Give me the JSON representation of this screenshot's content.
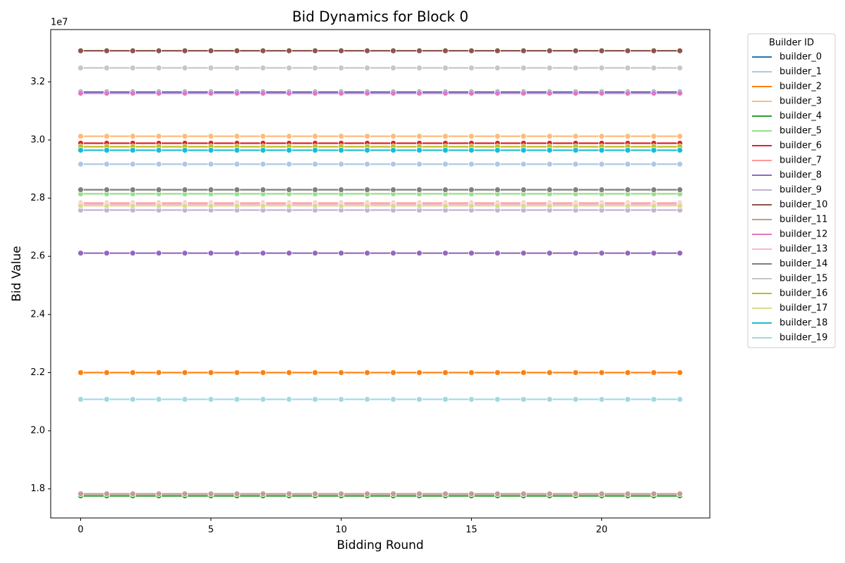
{
  "chart_data": {
    "type": "line",
    "title": "Bid Dynamics for Block 0",
    "x_label": "Bidding Round",
    "y_label": "Bid Value",
    "y_offset": "1e7",
    "legend_title": "Builder ID",
    "legend": "outside-upper-right",
    "grid": false,
    "x": [
      0,
      1,
      2,
      3,
      4,
      5,
      6,
      7,
      8,
      9,
      10,
      11,
      12,
      13,
      14,
      15,
      16,
      17,
      18,
      19,
      20,
      21,
      22,
      23
    ],
    "xlim": [
      -1.15,
      24.15
    ],
    "xticks": [
      0,
      5,
      10,
      15,
      20
    ],
    "ylim": [
      1.7,
      3.38
    ],
    "yticks": [
      1.8,
      {
        "value": 2.0,
        "label": "2.0"
      },
      2.2,
      2.4,
      2.6,
      2.8,
      {
        "value": 3.0,
        "label": "3.0"
      },
      3.2
    ],
    "series": [
      {
        "name": "builder_0",
        "color": "#1f77b4",
        "values": [
          3.165,
          3.165,
          3.165,
          3.165,
          3.165,
          3.165,
          3.165,
          3.165,
          3.165,
          3.165,
          3.165,
          3.165,
          3.165,
          3.165,
          3.165,
          3.165,
          3.165,
          3.165,
          3.165,
          3.165,
          3.165,
          3.165,
          3.165,
          3.165
        ]
      },
      {
        "name": "builder_1",
        "color": "#aec7e8",
        "values": [
          2.917,
          2.917,
          2.917,
          2.917,
          2.917,
          2.917,
          2.917,
          2.917,
          2.917,
          2.917,
          2.917,
          2.917,
          2.917,
          2.917,
          2.917,
          2.917,
          2.917,
          2.917,
          2.917,
          2.917,
          2.917,
          2.917,
          2.917,
          2.917
        ]
      },
      {
        "name": "builder_2",
        "color": "#ff7f0e",
        "values": [
          2.2,
          2.2,
          2.2,
          2.2,
          2.2,
          2.2,
          2.2,
          2.2,
          2.2,
          2.2,
          2.2,
          2.2,
          2.2,
          2.2,
          2.2,
          2.2,
          2.2,
          2.2,
          2.2,
          2.2,
          2.2,
          2.2,
          2.2,
          2.2
        ]
      },
      {
        "name": "builder_3",
        "color": "#ffbb78",
        "values": [
          3.013,
          3.013,
          3.013,
          3.013,
          3.013,
          3.013,
          3.013,
          3.013,
          3.013,
          3.013,
          3.013,
          3.013,
          3.013,
          3.013,
          3.013,
          3.013,
          3.013,
          3.013,
          3.013,
          3.013,
          3.013,
          3.013,
          3.013,
          3.013
        ]
      },
      {
        "name": "builder_4",
        "color": "#2ca02c",
        "values": [
          1.776,
          1.776,
          1.776,
          1.776,
          1.776,
          1.776,
          1.776,
          1.776,
          1.776,
          1.776,
          1.776,
          1.776,
          1.776,
          1.776,
          1.776,
          1.776,
          1.776,
          1.776,
          1.776,
          1.776,
          1.776,
          1.776,
          1.776,
          1.776
        ]
      },
      {
        "name": "builder_5",
        "color": "#98df8a",
        "values": [
          2.815,
          2.815,
          2.815,
          2.815,
          2.815,
          2.815,
          2.815,
          2.815,
          2.815,
          2.815,
          2.815,
          2.815,
          2.815,
          2.815,
          2.815,
          2.815,
          2.815,
          2.815,
          2.815,
          2.815,
          2.815,
          2.815,
          2.815,
          2.815
        ]
      },
      {
        "name": "builder_6",
        "color": "#d62728",
        "values": [
          2.989,
          2.989,
          2.989,
          2.989,
          2.989,
          2.989,
          2.989,
          2.989,
          2.989,
          2.989,
          2.989,
          2.989,
          2.989,
          2.989,
          2.989,
          2.989,
          2.989,
          2.989,
          2.989,
          2.989,
          2.989,
          2.989,
          2.989,
          2.989
        ]
      },
      {
        "name": "builder_7",
        "color": "#ff9896",
        "values": [
          2.783,
          2.783,
          2.783,
          2.783,
          2.783,
          2.783,
          2.783,
          2.783,
          2.783,
          2.783,
          2.783,
          2.783,
          2.783,
          2.783,
          2.783,
          2.783,
          2.783,
          2.783,
          2.783,
          2.783,
          2.783,
          2.783,
          2.783,
          2.783
        ]
      },
      {
        "name": "builder_8",
        "color": "#9467bd",
        "values": [
          2.611,
          2.611,
          2.611,
          2.611,
          2.611,
          2.611,
          2.611,
          2.611,
          2.611,
          2.611,
          2.611,
          2.611,
          2.611,
          2.611,
          2.611,
          2.611,
          2.611,
          2.611,
          2.611,
          2.611,
          2.611,
          2.611,
          2.611,
          2.611
        ]
      },
      {
        "name": "builder_9",
        "color": "#c5b0d5",
        "values": [
          2.759,
          2.759,
          2.759,
          2.759,
          2.759,
          2.759,
          2.759,
          2.759,
          2.759,
          2.759,
          2.759,
          2.759,
          2.759,
          2.759,
          2.759,
          2.759,
          2.759,
          2.759,
          2.759,
          2.759,
          2.759,
          2.759,
          2.759,
          2.759
        ]
      },
      {
        "name": "builder_10",
        "color": "#8c564b",
        "values": [
          3.307,
          3.307,
          3.307,
          3.307,
          3.307,
          3.307,
          3.307,
          3.307,
          3.307,
          3.307,
          3.307,
          3.307,
          3.307,
          3.307,
          3.307,
          3.307,
          3.307,
          3.307,
          3.307,
          3.307,
          3.307,
          3.307,
          3.307,
          3.307
        ]
      },
      {
        "name": "builder_11",
        "color": "#c49c94",
        "values": [
          1.783,
          1.783,
          1.783,
          1.783,
          1.783,
          1.783,
          1.783,
          1.783,
          1.783,
          1.783,
          1.783,
          1.783,
          1.783,
          1.783,
          1.783,
          1.783,
          1.783,
          1.783,
          1.783,
          1.783,
          1.783,
          1.783,
          1.783,
          1.783
        ]
      },
      {
        "name": "builder_12",
        "color": "#e377c2",
        "values": [
          3.161,
          3.161,
          3.161,
          3.161,
          3.161,
          3.161,
          3.161,
          3.161,
          3.161,
          3.161,
          3.161,
          3.161,
          3.161,
          3.161,
          3.161,
          3.161,
          3.161,
          3.161,
          3.161,
          3.161,
          3.161,
          3.161,
          3.161,
          3.161
        ]
      },
      {
        "name": "builder_13",
        "color": "#f7b6d2",
        "values": [
          2.779,
          2.779,
          2.779,
          2.779,
          2.779,
          2.779,
          2.779,
          2.779,
          2.779,
          2.779,
          2.779,
          2.779,
          2.779,
          2.779,
          2.779,
          2.779,
          2.779,
          2.779,
          2.779,
          2.779,
          2.779,
          2.779,
          2.779,
          2.779
        ]
      },
      {
        "name": "builder_14",
        "color": "#7f7f7f",
        "values": [
          2.829,
          2.829,
          2.829,
          2.829,
          2.829,
          2.829,
          2.829,
          2.829,
          2.829,
          2.829,
          2.829,
          2.829,
          2.829,
          2.829,
          2.829,
          2.829,
          2.829,
          2.829,
          2.829,
          2.829,
          2.829,
          2.829,
          2.829,
          2.829
        ]
      },
      {
        "name": "builder_15",
        "color": "#c7c7c7",
        "values": [
          3.248,
          3.248,
          3.248,
          3.248,
          3.248,
          3.248,
          3.248,
          3.248,
          3.248,
          3.248,
          3.248,
          3.248,
          3.248,
          3.248,
          3.248,
          3.248,
          3.248,
          3.248,
          3.248,
          3.248,
          3.248,
          3.248,
          3.248,
          3.248
        ]
      },
      {
        "name": "builder_16",
        "color": "#bcbd22",
        "values": [
          2.977,
          2.977,
          2.977,
          2.977,
          2.977,
          2.977,
          2.977,
          2.977,
          2.977,
          2.977,
          2.977,
          2.977,
          2.977,
          2.977,
          2.977,
          2.977,
          2.977,
          2.977,
          2.977,
          2.977,
          2.977,
          2.977,
          2.977,
          2.977
        ]
      },
      {
        "name": "builder_17",
        "color": "#dbdb8d",
        "values": [
          2.774,
          2.774,
          2.774,
          2.774,
          2.774,
          2.774,
          2.774,
          2.774,
          2.774,
          2.774,
          2.774,
          2.774,
          2.774,
          2.774,
          2.774,
          2.774,
          2.774,
          2.774,
          2.774,
          2.774,
          2.774,
          2.774,
          2.774,
          2.774
        ]
      },
      {
        "name": "builder_18",
        "color": "#17becf",
        "values": [
          2.965,
          2.965,
          2.965,
          2.965,
          2.965,
          2.965,
          2.965,
          2.965,
          2.965,
          2.965,
          2.965,
          2.965,
          2.965,
          2.965,
          2.965,
          2.965,
          2.965,
          2.965,
          2.965,
          2.965,
          2.965,
          2.965,
          2.965,
          2.965
        ]
      },
      {
        "name": "builder_19",
        "color": "#9edae5",
        "values": [
          2.108,
          2.108,
          2.108,
          2.108,
          2.108,
          2.108,
          2.108,
          2.108,
          2.108,
          2.108,
          2.108,
          2.108,
          2.108,
          2.108,
          2.108,
          2.108,
          2.108,
          2.108,
          2.108,
          2.108,
          2.108,
          2.108,
          2.108,
          2.108
        ]
      }
    ]
  }
}
